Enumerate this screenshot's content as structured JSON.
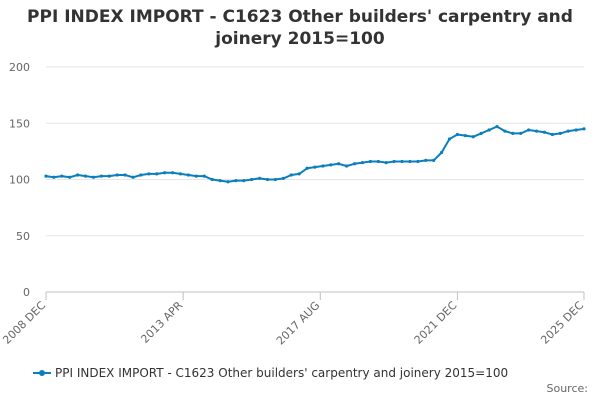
{
  "chart_data": {
    "type": "line",
    "title_lines": [
      "PPI INDEX IMPORT - C1623 Other builders' carpentry and",
      "joinery 2015=100"
    ],
    "xlabel": "",
    "ylabel": "",
    "ylim": [
      0,
      200
    ],
    "yticks": [
      "0",
      "50",
      "100",
      "150",
      "200"
    ],
    "xticks": [
      "2008 DEC",
      "2013 APR",
      "2017 AUG",
      "2021 DEC",
      "2025 DEC"
    ],
    "grid": true,
    "legend_position": "bottom",
    "series": [
      {
        "name": "PPI INDEX IMPORT - C1623 Other builders' carpentry and joinery 2015=100",
        "color": "#0b7fbb",
        "points": [
          [
            "2008-12",
            103
          ],
          [
            "2009-03",
            102
          ],
          [
            "2009-06",
            103
          ],
          [
            "2009-09",
            102
          ],
          [
            "2009-12",
            104
          ],
          [
            "2010-03",
            103
          ],
          [
            "2010-06",
            102
          ],
          [
            "2010-09",
            103
          ],
          [
            "2010-12",
            103
          ],
          [
            "2011-03",
            104
          ],
          [
            "2011-06",
            104
          ],
          [
            "2011-09",
            102
          ],
          [
            "2011-12",
            104
          ],
          [
            "2012-03",
            105
          ],
          [
            "2012-06",
            105
          ],
          [
            "2012-09",
            106
          ],
          [
            "2012-12",
            106
          ],
          [
            "2013-03",
            105
          ],
          [
            "2013-06",
            104
          ],
          [
            "2013-09",
            103
          ],
          [
            "2013-12",
            103
          ],
          [
            "2014-03",
            100
          ],
          [
            "2014-06",
            99
          ],
          [
            "2014-09",
            98
          ],
          [
            "2014-12",
            99
          ],
          [
            "2015-03",
            99
          ],
          [
            "2015-06",
            100
          ],
          [
            "2015-09",
            101
          ],
          [
            "2015-12",
            100
          ],
          [
            "2016-03",
            100
          ],
          [
            "2016-06",
            101
          ],
          [
            "2016-09",
            104
          ],
          [
            "2016-12",
            105
          ],
          [
            "2017-03",
            110
          ],
          [
            "2017-06",
            111
          ],
          [
            "2017-09",
            112
          ],
          [
            "2017-12",
            113
          ],
          [
            "2018-03",
            114
          ],
          [
            "2018-06",
            112
          ],
          [
            "2018-09",
            114
          ],
          [
            "2018-12",
            115
          ],
          [
            "2019-03",
            116
          ],
          [
            "2019-06",
            116
          ],
          [
            "2019-09",
            115
          ],
          [
            "2019-12",
            116
          ],
          [
            "2020-03",
            116
          ],
          [
            "2020-06",
            116
          ],
          [
            "2020-09",
            116
          ],
          [
            "2020-12",
            117
          ],
          [
            "2021-03",
            117
          ],
          [
            "2021-06",
            124
          ],
          [
            "2021-09",
            136
          ],
          [
            "2021-12",
            140
          ],
          [
            "2022-03",
            139
          ],
          [
            "2022-06",
            138
          ],
          [
            "2022-09",
            141
          ],
          [
            "2022-12",
            144
          ],
          [
            "2023-03",
            147
          ],
          [
            "2023-06",
            143
          ],
          [
            "2023-09",
            141
          ],
          [
            "2023-12",
            141
          ],
          [
            "2024-03",
            144
          ],
          [
            "2024-06",
            143
          ],
          [
            "2024-09",
            142
          ],
          [
            "2024-12",
            140
          ],
          [
            "2025-03",
            141
          ],
          [
            "2025-06",
            143
          ],
          [
            "2025-09",
            144
          ],
          [
            "2025-12",
            145
          ]
        ]
      }
    ],
    "source_label": "Source:"
  }
}
